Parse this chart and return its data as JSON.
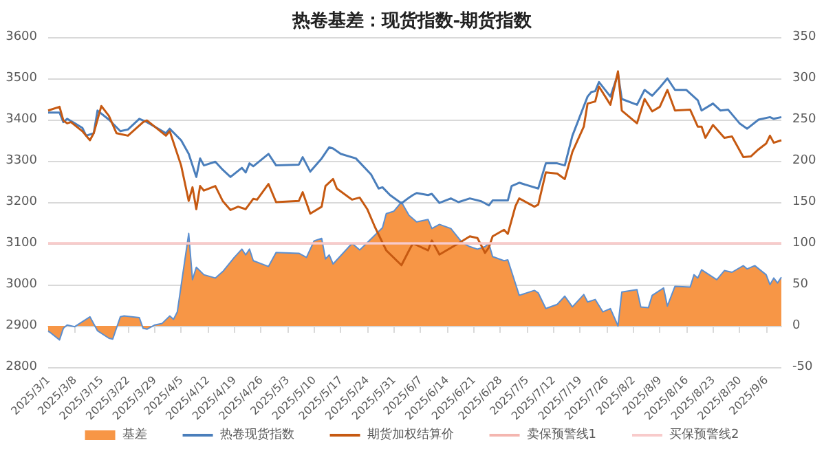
{
  "chart_data": {
    "type": "line",
    "title": "热卷基差：现货指数-期货指数",
    "xlim": [
      "2025-03-01",
      "2025-09-10"
    ],
    "xticks": [
      {
        "value": "2025-03-01",
        "label": "2025/3/1"
      },
      {
        "value": "2025-03-08",
        "label": "2025/3/8"
      },
      {
        "value": "2025-03-15",
        "label": "2025/3/15"
      },
      {
        "value": "2025-03-22",
        "label": "2025/3/22"
      },
      {
        "value": "2025-03-29",
        "label": "2025/3/29"
      },
      {
        "value": "2025-04-05",
        "label": "2025/4/5"
      },
      {
        "value": "2025-04-12",
        "label": "2025/4/12"
      },
      {
        "value": "2025-04-19",
        "label": "2025/4/19"
      },
      {
        "value": "2025-04-26",
        "label": "2025/4/26"
      },
      {
        "value": "2025-05-03",
        "label": "2025/5/3"
      },
      {
        "value": "2025-05-10",
        "label": "2025/5/10"
      },
      {
        "value": "2025-05-17",
        "label": "2025/5/17"
      },
      {
        "value": "2025-05-24",
        "label": "2025/5/24"
      },
      {
        "value": "2025-05-31",
        "label": "2025/5/31"
      },
      {
        "value": "2025-06-07",
        "label": "2025/6/7"
      },
      {
        "value": "2025-06-14",
        "label": "2025/6/14"
      },
      {
        "value": "2025-06-21",
        "label": "2025/6/21"
      },
      {
        "value": "2025-06-28",
        "label": "2025/6/28"
      },
      {
        "value": "2025-07-05",
        "label": "2025/7/5"
      },
      {
        "value": "2025-07-12",
        "label": "2025/7/12"
      },
      {
        "value": "2025-07-19",
        "label": "2025/7/19"
      },
      {
        "value": "2025-07-26",
        "label": "2025/7/26"
      },
      {
        "value": "2025-08-02",
        "label": "2025/8/2"
      },
      {
        "value": "2025-08-09",
        "label": "2025/8/9"
      },
      {
        "value": "2025-08-16",
        "label": "2025/8/16"
      },
      {
        "value": "2025-08-23",
        "label": "2025/8/23"
      },
      {
        "value": "2025-08-30",
        "label": "2025/8/30"
      },
      {
        "value": "2025-09-06",
        "label": "2025/9/6"
      }
    ],
    "ylim": [
      2800,
      3600
    ],
    "yticks": [
      2800,
      2900,
      3000,
      3100,
      3200,
      3300,
      3400,
      3500,
      3600
    ],
    "y2lim": [
      -50,
      350
    ],
    "y2ticks": [
      -50,
      0,
      50,
      100,
      150,
      200,
      250,
      300,
      350
    ],
    "grid": "y",
    "legend": "bottom",
    "marker": "none",
    "series": [
      {
        "name": "基差",
        "type": "area",
        "axis": "y2",
        "color": "#f79646",
        "x": [
          "2025-03-01",
          "2025-03-04",
          "2025-03-05",
          "2025-03-06",
          "2025-03-08",
          "2025-03-12",
          "2025-03-14",
          "2025-03-17",
          "2025-03-18",
          "2025-03-20",
          "2025-03-21",
          "2025-03-25",
          "2025-03-26",
          "2025-03-27",
          "2025-03-29",
          "2025-03-31",
          "2025-04-02",
          "2025-04-03",
          "2025-04-04",
          "2025-04-07",
          "2025-04-08",
          "2025-04-09",
          "2025-04-11",
          "2025-04-14",
          "2025-04-16",
          "2025-04-19",
          "2025-04-21",
          "2025-04-22",
          "2025-04-23",
          "2025-04-24",
          "2025-04-28",
          "2025-04-30",
          "2025-05-06",
          "2025-05-08",
          "2025-05-10",
          "2025-05-12",
          "2025-05-13",
          "2025-05-14",
          "2025-05-15",
          "2025-05-20",
          "2025-05-22",
          "2025-05-28",
          "2025-05-29",
          "2025-05-31",
          "2025-06-02",
          "2025-06-04",
          "2025-06-06",
          "2025-06-09",
          "2025-06-10",
          "2025-06-12",
          "2025-06-15",
          "2025-06-18",
          "2025-06-20",
          "2025-06-22",
          "2025-06-24",
          "2025-06-25",
          "2025-06-26",
          "2025-06-29",
          "2025-06-30",
          "2025-07-03",
          "2025-07-07",
          "2025-07-08",
          "2025-07-10",
          "2025-07-13",
          "2025-07-15",
          "2025-07-17",
          "2025-07-20",
          "2025-07-21",
          "2025-07-23",
          "2025-07-25",
          "2025-07-27",
          "2025-07-29",
          "2025-07-30",
          "2025-08-03",
          "2025-08-04",
          "2025-08-06",
          "2025-08-07",
          "2025-08-10",
          "2025-08-11",
          "2025-08-13",
          "2025-08-17",
          "2025-08-18",
          "2025-08-19",
          "2025-08-20",
          "2025-08-24",
          "2025-08-26",
          "2025-08-28",
          "2025-08-31",
          "2025-09-01",
          "2025-09-03",
          "2025-09-06",
          "2025-09-07",
          "2025-09-08",
          "2025-09-09",
          "2025-09-10"
        ],
        "values": [
          -6,
          -17,
          -3,
          1,
          -1,
          11,
          -6,
          -15,
          -16,
          11,
          12,
          10,
          -3,
          -4,
          1,
          3,
          12,
          8,
          17,
          112,
          56,
          71,
          62,
          58,
          66,
          83,
          93,
          86,
          93,
          79,
          72,
          89,
          88,
          83,
          103,
          106,
          81,
          86,
          75,
          100,
          92,
          119,
          136,
          139,
          150,
          134,
          126,
          129,
          118,
          123,
          118,
          101,
          96,
          93,
          96,
          100,
          84,
          79,
          80,
          37,
          43,
          40,
          21,
          26,
          36,
          23,
          38,
          29,
          32,
          17,
          21,
          0,
          41,
          44,
          23,
          22,
          37,
          46,
          24,
          48,
          47,
          62,
          58,
          68,
          56,
          67,
          65,
          73,
          69,
          73,
          62,
          50,
          58,
          52,
          59
        ]
      },
      {
        "name": "热卷现货指数",
        "color": "#4a7ebb",
        "x": [
          "2025-03-01",
          "2025-03-04",
          "2025-03-05",
          "2025-03-06",
          "2025-03-08",
          "2025-03-10",
          "2025-03-11",
          "2025-03-13",
          "2025-03-14",
          "2025-03-17",
          "2025-03-20",
          "2025-03-22",
          "2025-03-25",
          "2025-03-27",
          "2025-04-01",
          "2025-04-02",
          "2025-04-05",
          "2025-04-07",
          "2025-04-09",
          "2025-04-10",
          "2025-04-11",
          "2025-04-14",
          "2025-04-16",
          "2025-04-18",
          "2025-04-21",
          "2025-04-22",
          "2025-04-23",
          "2025-04-24",
          "2025-04-28",
          "2025-04-30",
          "2025-05-06",
          "2025-05-07",
          "2025-05-09",
          "2025-05-12",
          "2025-05-14",
          "2025-05-15",
          "2025-05-17",
          "2025-05-21",
          "2025-05-25",
          "2025-05-27",
          "2025-05-28",
          "2025-05-30",
          "2025-06-02",
          "2025-06-04",
          "2025-06-05",
          "2025-06-06",
          "2025-06-09",
          "2025-06-10",
          "2025-06-12",
          "2025-06-15",
          "2025-06-17",
          "2025-06-20",
          "2025-06-23",
          "2025-06-25",
          "2025-06-26",
          "2025-06-30",
          "2025-07-01",
          "2025-07-03",
          "2025-07-08",
          "2025-07-10",
          "2025-07-13",
          "2025-07-15",
          "2025-07-17",
          "2025-07-21",
          "2025-07-22",
          "2025-07-23",
          "2025-07-24",
          "2025-07-27",
          "2025-07-29",
          "2025-07-30",
          "2025-08-03",
          "2025-08-05",
          "2025-08-07",
          "2025-08-09",
          "2025-08-11",
          "2025-08-13",
          "2025-08-16",
          "2025-08-19",
          "2025-08-20",
          "2025-08-23",
          "2025-08-25",
          "2025-08-27",
          "2025-08-30",
          "2025-09-01",
          "2025-09-04",
          "2025-09-07",
          "2025-09-08",
          "2025-09-10"
        ],
        "values": [
          3417,
          3417,
          3394,
          3402,
          3391,
          3380,
          3361,
          3367,
          3422,
          3400,
          3372,
          3376,
          3402,
          3394,
          3367,
          3378,
          3350,
          3317,
          3261,
          3306,
          3289,
          3298,
          3278,
          3261,
          3283,
          3272,
          3294,
          3287,
          3317,
          3289,
          3291,
          3309,
          3274,
          3306,
          3333,
          3330,
          3317,
          3306,
          3267,
          3233,
          3236,
          3217,
          3197,
          3211,
          3217,
          3222,
          3217,
          3220,
          3198,
          3209,
          3200,
          3209,
          3202,
          3192,
          3204,
          3204,
          3239,
          3247,
          3233,
          3294,
          3294,
          3289,
          3361,
          3456,
          3467,
          3469,
          3491,
          3456,
          3511,
          3450,
          3436,
          3472,
          3458,
          3478,
          3500,
          3472,
          3472,
          3447,
          3422,
          3439,
          3422,
          3424,
          3391,
          3378,
          3400,
          3406,
          3402,
          3406
        ]
      },
      {
        "name": "期货加权结算价",
        "color": "#c65911",
        "x": [
          "2025-03-01",
          "2025-03-04",
          "2025-03-05",
          "2025-03-06",
          "2025-03-07",
          "2025-03-10",
          "2025-03-12",
          "2025-03-13",
          "2025-03-15",
          "2025-03-17",
          "2025-03-19",
          "2025-03-22",
          "2025-03-26",
          "2025-03-27",
          "2025-04-01",
          "2025-04-02",
          "2025-04-05",
          "2025-04-07",
          "2025-04-08",
          "2025-04-09",
          "2025-04-10",
          "2025-04-11",
          "2025-04-14",
          "2025-04-16",
          "2025-04-18",
          "2025-04-20",
          "2025-04-22",
          "2025-04-24",
          "2025-04-25",
          "2025-04-28",
          "2025-04-30",
          "2025-05-06",
          "2025-05-07",
          "2025-05-09",
          "2025-05-12",
          "2025-05-13",
          "2025-05-15",
          "2025-05-16",
          "2025-05-20",
          "2025-05-22",
          "2025-05-24",
          "2025-05-26",
          "2025-05-29",
          "2025-06-02",
          "2025-06-04",
          "2025-06-05",
          "2025-06-09",
          "2025-06-10",
          "2025-06-12",
          "2025-06-17",
          "2025-06-20",
          "2025-06-22",
          "2025-06-24",
          "2025-06-25",
          "2025-06-26",
          "2025-06-29",
          "2025-06-30",
          "2025-07-02",
          "2025-07-03",
          "2025-07-07",
          "2025-07-08",
          "2025-07-10",
          "2025-07-13",
          "2025-07-15",
          "2025-07-17",
          "2025-07-20",
          "2025-07-21",
          "2025-07-23",
          "2025-07-24",
          "2025-07-27",
          "2025-07-29",
          "2025-07-30",
          "2025-08-03",
          "2025-08-05",
          "2025-08-07",
          "2025-08-09",
          "2025-08-11",
          "2025-08-13",
          "2025-08-17",
          "2025-08-19",
          "2025-08-20",
          "2025-08-21",
          "2025-08-23",
          "2025-08-26",
          "2025-08-28",
          "2025-08-31",
          "2025-09-02",
          "2025-09-04",
          "2025-09-06",
          "2025-09-07",
          "2025-09-08",
          "2025-09-10"
        ],
        "values": [
          3422,
          3431,
          3398,
          3391,
          3394,
          3372,
          3350,
          3367,
          3433,
          3409,
          3367,
          3361,
          3394,
          3398,
          3361,
          3372,
          3289,
          3203,
          3236,
          3183,
          3239,
          3228,
          3239,
          3202,
          3181,
          3189,
          3183,
          3208,
          3206,
          3244,
          3200,
          3203,
          3224,
          3172,
          3189,
          3239,
          3256,
          3233,
          3206,
          3211,
          3183,
          3140,
          3083,
          3047,
          3083,
          3100,
          3083,
          3107,
          3073,
          3100,
          3117,
          3113,
          3077,
          3090,
          3117,
          3133,
          3123,
          3190,
          3209,
          3189,
          3194,
          3272,
          3269,
          3256,
          3322,
          3383,
          3439,
          3444,
          3480,
          3436,
          3517,
          3422,
          3391,
          3450,
          3420,
          3431,
          3472,
          3422,
          3424,
          3383,
          3383,
          3356,
          3387,
          3356,
          3359,
          3309,
          3311,
          3328,
          3342,
          3361,
          3344,
          3350
        ]
      }
    ],
    "ref_lines": [
      {
        "axis": "y2",
        "value": 100,
        "label": "卖保预警线1",
        "color": "#f4b6b0"
      },
      {
        "axis": "y2",
        "value": 100,
        "label": "买保预警线2",
        "color": "#f8cbcb"
      }
    ]
  }
}
